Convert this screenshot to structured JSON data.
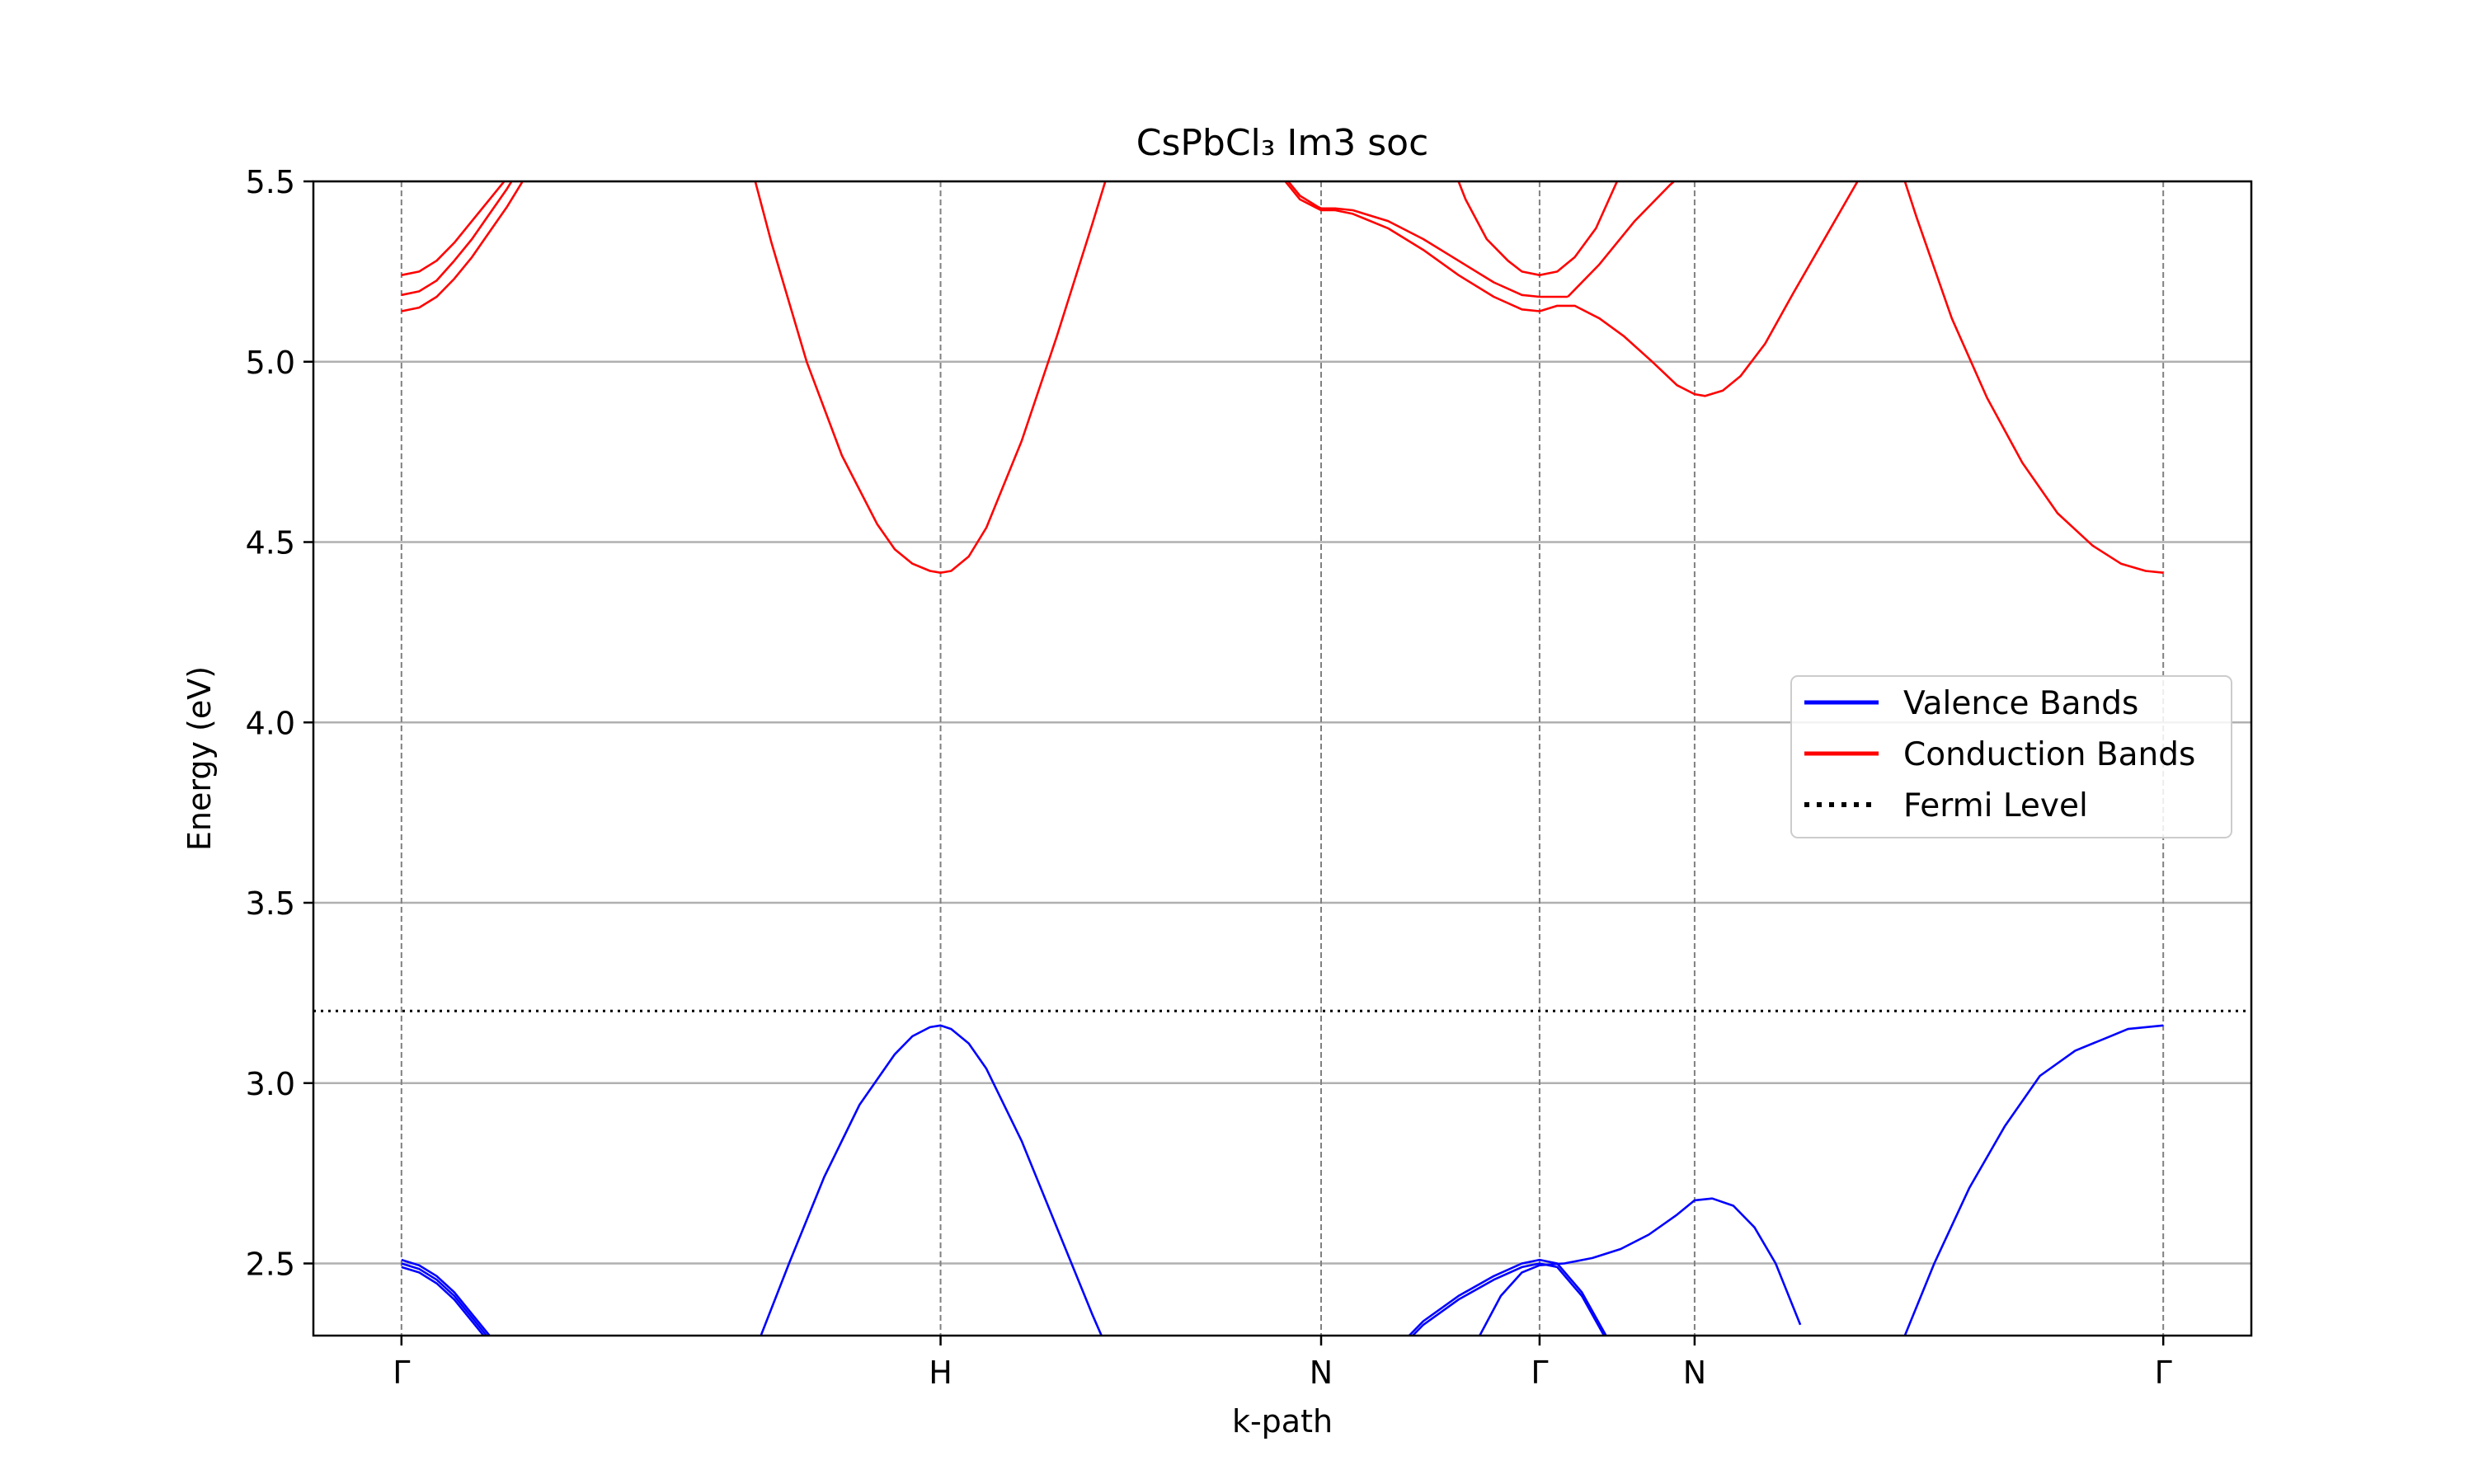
{
  "chart_data": {
    "type": "line",
    "title": "CsPbCl₃ Im3 soc",
    "xlabel": "k-path",
    "ylabel": "Energy (eV)",
    "ylim": [
      2.3,
      5.5
    ],
    "yticks": [
      "2.5",
      "3.0",
      "3.5",
      "4.0",
      "4.5",
      "5.0",
      "5.5"
    ],
    "ytick_values": [
      2.5,
      3.0,
      3.5,
      4.0,
      4.5,
      5.0,
      5.5
    ],
    "xlim": [
      -0.25,
      5.25
    ],
    "kpoints": [
      {
        "label": "Γ",
        "x": 0.0
      },
      {
        "label": "H",
        "x": 1.53
      },
      {
        "label": "N",
        "x": 2.61
      },
      {
        "label": "Γ",
        "x": 3.23
      },
      {
        "label": "N",
        "x": 3.67
      },
      {
        "label": "Γ",
        "x": 5.0
      }
    ],
    "grid": true,
    "legend_position": "center-right",
    "fermi_level": 3.2,
    "series": [
      {
        "name": "Valence Bands",
        "color": "#0000ff",
        "style": "solid"
      },
      {
        "name": "Conduction Bands",
        "color": "#ff0000",
        "style": "solid"
      },
      {
        "name": "Fermi Level",
        "color": "#000000",
        "style": "dotted"
      }
    ],
    "valence_bands": [
      {
        "x": [
          0.0,
          0.05,
          0.1,
          0.15,
          0.2,
          0.25,
          0.28
        ],
        "y": [
          2.51,
          2.495,
          2.465,
          2.42,
          2.36,
          2.3,
          2.27
        ]
      },
      {
        "x": [
          0.0,
          0.05,
          0.1,
          0.15,
          0.2,
          0.25,
          0.28
        ],
        "y": [
          2.5,
          2.485,
          2.455,
          2.41,
          2.35,
          2.29,
          2.26
        ]
      },
      {
        "x": [
          0.0,
          0.05,
          0.1,
          0.15,
          0.2,
          0.25,
          0.28
        ],
        "y": [
          2.49,
          2.475,
          2.445,
          2.4,
          2.34,
          2.28,
          2.25
        ]
      },
      {
        "x": [
          1.0,
          1.1,
          1.2,
          1.3,
          1.4,
          1.45,
          1.5,
          1.53,
          1.56,
          1.61,
          1.66,
          1.76,
          1.86,
          1.96,
          2.0,
          2.05
        ],
        "y": [
          2.25,
          2.5,
          2.74,
          2.94,
          3.08,
          3.13,
          3.155,
          3.16,
          3.15,
          3.11,
          3.04,
          2.84,
          2.6,
          2.36,
          2.27,
          2.16
        ]
      },
      {
        "x": [
          4.25,
          4.35,
          4.45,
          4.55,
          4.65,
          4.75,
          4.85,
          4.9,
          4.95,
          5.0
        ],
        "y": [
          2.26,
          2.5,
          2.71,
          2.88,
          3.02,
          3.09,
          3.13,
          3.15,
          3.155,
          3.16
        ]
      },
      {
        "x": [
          2.81,
          2.9,
          3.0,
          3.1,
          3.18,
          3.23,
          3.28,
          3.35,
          3.43
        ],
        "y": [
          2.25,
          2.34,
          2.41,
          2.465,
          2.5,
          2.51,
          2.5,
          2.42,
          2.28
        ]
      },
      {
        "x": [
          2.81,
          2.9,
          3.0,
          3.1,
          3.18,
          3.23,
          3.28,
          3.35,
          3.43
        ],
        "y": [
          2.24,
          2.33,
          2.4,
          2.455,
          2.49,
          2.5,
          2.49,
          2.41,
          2.27
        ]
      },
      {
        "x": [
          3.0,
          3.06,
          3.12,
          3.18,
          3.23,
          3.3,
          3.38,
          3.46,
          3.54,
          3.62,
          3.67,
          3.72,
          3.78,
          3.84,
          3.9,
          3.97
        ],
        "y": [
          2.15,
          2.3,
          2.41,
          2.475,
          2.495,
          2.5,
          2.515,
          2.54,
          2.58,
          2.635,
          2.675,
          2.68,
          2.66,
          2.6,
          2.5,
          2.33
        ]
      }
    ],
    "conduction_bands": [
      {
        "x": [
          0.0,
          0.05,
          0.1,
          0.15,
          0.2,
          0.25,
          0.3,
          0.35,
          0.38
        ],
        "y": [
          5.24,
          5.25,
          5.28,
          5.33,
          5.39,
          5.45,
          5.51,
          5.58,
          5.62
        ]
      },
      {
        "x": [
          0.0,
          0.05,
          0.1,
          0.15,
          0.2,
          0.25,
          0.3,
          0.35,
          0.38
        ],
        "y": [
          5.185,
          5.195,
          5.225,
          5.28,
          5.34,
          5.41,
          5.48,
          5.56,
          5.6
        ]
      },
      {
        "x": [
          0.0,
          0.05,
          0.1,
          0.15,
          0.2,
          0.25,
          0.3,
          0.35,
          0.38
        ],
        "y": [
          5.14,
          5.15,
          5.18,
          5.23,
          5.29,
          5.36,
          5.43,
          5.51,
          5.56
        ]
      },
      {
        "x": [
          0.95,
          1.05,
          1.15,
          1.25,
          1.35,
          1.4,
          1.45,
          1.5,
          1.53,
          1.56,
          1.61,
          1.66,
          1.76,
          1.86,
          1.96,
          2.06,
          2.15
        ],
        "y": [
          5.7,
          5.33,
          5.0,
          4.74,
          4.55,
          4.48,
          4.44,
          4.42,
          4.415,
          4.42,
          4.46,
          4.54,
          4.78,
          5.07,
          5.38,
          5.7,
          5.95
        ]
      },
      {
        "x": [
          2.45,
          2.5,
          2.55,
          2.6,
          2.61,
          2.65,
          2.7,
          2.8,
          2.9,
          3.0,
          3.1,
          3.18,
          3.23,
          3.28,
          3.31
        ],
        "y": [
          5.57,
          5.52,
          5.46,
          5.43,
          5.425,
          5.425,
          5.42,
          5.39,
          5.34,
          5.28,
          5.22,
          5.185,
          5.18,
          5.18,
          5.18
        ]
      },
      {
        "x": [
          2.45,
          2.5,
          2.55,
          2.6,
          2.61,
          2.65,
          2.7,
          2.8,
          2.9,
          3.0,
          3.1,
          3.18,
          3.23
        ],
        "y": [
          5.56,
          5.51,
          5.45,
          5.425,
          5.42,
          5.42,
          5.41,
          5.37,
          5.31,
          5.24,
          5.18,
          5.145,
          5.14
        ]
      },
      {
        "x": [
          3.23,
          3.28,
          3.33,
          3.4,
          3.47,
          3.55,
          3.62,
          3.67,
          3.7,
          3.75,
          3.8,
          3.87,
          3.95,
          4.05,
          4.15,
          4.25
        ],
        "y": [
          5.14,
          5.155,
          5.155,
          5.12,
          5.07,
          5.0,
          4.935,
          4.91,
          4.905,
          4.92,
          4.96,
          5.05,
          5.19,
          5.36,
          5.53,
          5.7
        ]
      },
      {
        "x": [
          3.31,
          3.4,
          3.5,
          3.6,
          3.67
        ],
        "y": [
          5.18,
          5.27,
          5.39,
          5.49,
          5.55
        ]
      },
      {
        "x": [
          2.96,
          3.02,
          3.08,
          3.14,
          3.18,
          3.23,
          3.28,
          3.33,
          3.39,
          3.45
        ],
        "y": [
          5.6,
          5.45,
          5.34,
          5.28,
          5.25,
          5.24,
          5.25,
          5.29,
          5.37,
          5.5
        ]
      },
      {
        "x": [
          4.2,
          4.3,
          4.4,
          4.5,
          4.6,
          4.7,
          4.8,
          4.88,
          4.95,
          5.0
        ],
        "y": [
          5.7,
          5.4,
          5.12,
          4.9,
          4.72,
          4.58,
          4.49,
          4.44,
          4.42,
          4.415
        ]
      }
    ]
  }
}
